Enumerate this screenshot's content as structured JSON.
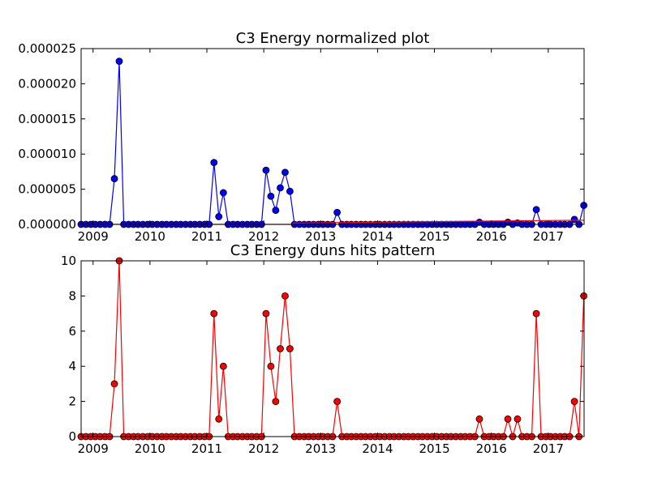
{
  "chart_data": [
    {
      "type": "line",
      "title": "C3 Energy normalized plot",
      "xlabel": "",
      "ylabel": "",
      "xlim": [
        2008.79,
        2017.63
      ],
      "ylim": [
        0,
        2.5e-05
      ],
      "grid": false,
      "x_ticks": [
        "2009",
        "2010",
        "2011",
        "2012",
        "2013",
        "2014",
        "2015",
        "2016",
        "2017"
      ],
      "y_ticks": [
        "0.000000",
        "0.000005",
        "0.000010",
        "0.000015",
        "0.000020",
        "0.000025"
      ],
      "series": [
        {
          "color": "#0000ff",
          "marker": "circle",
          "points": [
            [
              2008.79,
              0
            ],
            [
              2008.875,
              0
            ],
            [
              2008.96,
              0
            ],
            [
              2009.04,
              0
            ],
            [
              2009.125,
              0
            ],
            [
              2009.21,
              0
            ],
            [
              2009.29,
              0
            ],
            [
              2009.375,
              6.5e-06
            ],
            [
              2009.46,
              2.32e-05
            ],
            [
              2009.54,
              0
            ],
            [
              2009.625,
              0
            ],
            [
              2009.71,
              0
            ],
            [
              2009.79,
              0
            ],
            [
              2009.875,
              0
            ],
            [
              2009.96,
              0
            ],
            [
              2010.04,
              0
            ],
            [
              2010.125,
              0
            ],
            [
              2010.21,
              0
            ],
            [
              2010.29,
              0
            ],
            [
              2010.375,
              0
            ],
            [
              2010.46,
              0
            ],
            [
              2010.54,
              0
            ],
            [
              2010.625,
              0
            ],
            [
              2010.71,
              0
            ],
            [
              2010.79,
              0
            ],
            [
              2010.875,
              0
            ],
            [
              2010.96,
              0
            ],
            [
              2011.04,
              0
            ],
            [
              2011.125,
              8.8e-06
            ],
            [
              2011.21,
              1.1e-06
            ],
            [
              2011.29,
              4.5e-06
            ],
            [
              2011.375,
              0
            ],
            [
              2011.46,
              0
            ],
            [
              2011.54,
              0
            ],
            [
              2011.625,
              0
            ],
            [
              2011.71,
              0
            ],
            [
              2011.79,
              0
            ],
            [
              2011.875,
              0
            ],
            [
              2011.96,
              0
            ],
            [
              2012.04,
              7.7e-06
            ],
            [
              2012.125,
              4e-06
            ],
            [
              2012.21,
              2e-06
            ],
            [
              2012.29,
              5.2e-06
            ],
            [
              2012.375,
              7.4e-06
            ],
            [
              2012.46,
              4.7e-06
            ],
            [
              2012.54,
              0
            ],
            [
              2012.625,
              0
            ],
            [
              2012.71,
              0
            ],
            [
              2012.79,
              0
            ],
            [
              2012.875,
              0
            ],
            [
              2012.96,
              0
            ],
            [
              2013.04,
              0
            ],
            [
              2013.125,
              0
            ],
            [
              2013.21,
              0
            ],
            [
              2013.29,
              1.7e-06
            ],
            [
              2013.375,
              0
            ],
            [
              2013.46,
              0
            ],
            [
              2013.54,
              0
            ],
            [
              2013.625,
              0
            ],
            [
              2013.71,
              0
            ],
            [
              2013.79,
              0
            ],
            [
              2013.875,
              0
            ],
            [
              2013.96,
              0
            ],
            [
              2014.04,
              0
            ],
            [
              2014.125,
              0
            ],
            [
              2014.21,
              0
            ],
            [
              2014.29,
              0
            ],
            [
              2014.375,
              0
            ],
            [
              2014.46,
              0
            ],
            [
              2014.54,
              0
            ],
            [
              2014.625,
              0
            ],
            [
              2014.71,
              0
            ],
            [
              2014.79,
              0
            ],
            [
              2014.875,
              0
            ],
            [
              2014.96,
              0
            ],
            [
              2015.04,
              0
            ],
            [
              2015.125,
              0
            ],
            [
              2015.21,
              0
            ],
            [
              2015.29,
              0
            ],
            [
              2015.375,
              0
            ],
            [
              2015.46,
              0
            ],
            [
              2015.54,
              0
            ],
            [
              2015.625,
              0
            ],
            [
              2015.71,
              0
            ],
            [
              2015.79,
              3e-07
            ],
            [
              2015.875,
              0
            ],
            [
              2015.96,
              0
            ],
            [
              2016.04,
              0
            ],
            [
              2016.125,
              0
            ],
            [
              2016.21,
              0
            ],
            [
              2016.29,
              3e-07
            ],
            [
              2016.375,
              0
            ],
            [
              2016.46,
              2e-07
            ],
            [
              2016.54,
              0
            ],
            [
              2016.625,
              0
            ],
            [
              2016.71,
              0
            ],
            [
              2016.79,
              2.1e-06
            ],
            [
              2016.875,
              0
            ],
            [
              2016.96,
              0
            ],
            [
              2017.04,
              0
            ],
            [
              2017.125,
              0
            ],
            [
              2017.21,
              0
            ],
            [
              2017.29,
              0
            ],
            [
              2017.375,
              0
            ],
            [
              2017.46,
              7e-07
            ],
            [
              2017.54,
              0
            ],
            [
              2017.625,
              2.7e-06
            ]
          ]
        },
        {
          "color": "#ff0000",
          "marker": "none",
          "points": [
            [
              2008.79,
              0
            ],
            [
              2012.5,
              0
            ],
            [
              2012.54,
              2e-07
            ],
            [
              2017.63,
              6e-07
            ]
          ]
        }
      ]
    },
    {
      "type": "line",
      "title": "C3 Energy duns hits pattern",
      "xlabel": "",
      "ylabel": "",
      "xlim": [
        2008.79,
        2017.63
      ],
      "ylim": [
        0,
        10
      ],
      "grid": false,
      "x_ticks": [
        "2009",
        "2010",
        "2011",
        "2012",
        "2013",
        "2014",
        "2015",
        "2016",
        "2017"
      ],
      "y_ticks": [
        "0",
        "2",
        "4",
        "6",
        "8",
        "10"
      ],
      "series": [
        {
          "color": "#ff0000",
          "marker": "circle",
          "points": [
            [
              2008.79,
              0
            ],
            [
              2008.875,
              0
            ],
            [
              2008.96,
              0
            ],
            [
              2009.04,
              0
            ],
            [
              2009.125,
              0
            ],
            [
              2009.21,
              0
            ],
            [
              2009.29,
              0
            ],
            [
              2009.375,
              3
            ],
            [
              2009.46,
              10
            ],
            [
              2009.54,
              0
            ],
            [
              2009.625,
              0
            ],
            [
              2009.71,
              0
            ],
            [
              2009.79,
              0
            ],
            [
              2009.875,
              0
            ],
            [
              2009.96,
              0
            ],
            [
              2010.04,
              0
            ],
            [
              2010.125,
              0
            ],
            [
              2010.21,
              0
            ],
            [
              2010.29,
              0
            ],
            [
              2010.375,
              0
            ],
            [
              2010.46,
              0
            ],
            [
              2010.54,
              0
            ],
            [
              2010.625,
              0
            ],
            [
              2010.71,
              0
            ],
            [
              2010.79,
              0
            ],
            [
              2010.875,
              0
            ],
            [
              2010.96,
              0
            ],
            [
              2011.04,
              0
            ],
            [
              2011.125,
              7
            ],
            [
              2011.21,
              1
            ],
            [
              2011.29,
              4
            ],
            [
              2011.375,
              0
            ],
            [
              2011.46,
              0
            ],
            [
              2011.54,
              0
            ],
            [
              2011.625,
              0
            ],
            [
              2011.71,
              0
            ],
            [
              2011.79,
              0
            ],
            [
              2011.875,
              0
            ],
            [
              2011.96,
              0
            ],
            [
              2012.04,
              7
            ],
            [
              2012.125,
              4
            ],
            [
              2012.21,
              2
            ],
            [
              2012.29,
              5
            ],
            [
              2012.375,
              8
            ],
            [
              2012.46,
              5
            ],
            [
              2012.54,
              0
            ],
            [
              2012.625,
              0
            ],
            [
              2012.71,
              0
            ],
            [
              2012.79,
              0
            ],
            [
              2012.875,
              0
            ],
            [
              2012.96,
              0
            ],
            [
              2013.04,
              0
            ],
            [
              2013.125,
              0
            ],
            [
              2013.21,
              0
            ],
            [
              2013.29,
              2
            ],
            [
              2013.375,
              0
            ],
            [
              2013.46,
              0
            ],
            [
              2013.54,
              0
            ],
            [
              2013.625,
              0
            ],
            [
              2013.71,
              0
            ],
            [
              2013.79,
              0
            ],
            [
              2013.875,
              0
            ],
            [
              2013.96,
              0
            ],
            [
              2014.04,
              0
            ],
            [
              2014.125,
              0
            ],
            [
              2014.21,
              0
            ],
            [
              2014.29,
              0
            ],
            [
              2014.375,
              0
            ],
            [
              2014.46,
              0
            ],
            [
              2014.54,
              0
            ],
            [
              2014.625,
              0
            ],
            [
              2014.71,
              0
            ],
            [
              2014.79,
              0
            ],
            [
              2014.875,
              0
            ],
            [
              2014.96,
              0
            ],
            [
              2015.04,
              0
            ],
            [
              2015.125,
              0
            ],
            [
              2015.21,
              0
            ],
            [
              2015.29,
              0
            ],
            [
              2015.375,
              0
            ],
            [
              2015.46,
              0
            ],
            [
              2015.54,
              0
            ],
            [
              2015.625,
              0
            ],
            [
              2015.71,
              0
            ],
            [
              2015.79,
              1
            ],
            [
              2015.875,
              0
            ],
            [
              2015.96,
              0
            ],
            [
              2016.04,
              0
            ],
            [
              2016.125,
              0
            ],
            [
              2016.21,
              0
            ],
            [
              2016.29,
              1
            ],
            [
              2016.375,
              0
            ],
            [
              2016.46,
              1
            ],
            [
              2016.54,
              0
            ],
            [
              2016.625,
              0
            ],
            [
              2016.71,
              0
            ],
            [
              2016.79,
              7
            ],
            [
              2016.875,
              0
            ],
            [
              2016.96,
              0
            ],
            [
              2017.04,
              0
            ],
            [
              2017.125,
              0
            ],
            [
              2017.21,
              0
            ],
            [
              2017.29,
              0
            ],
            [
              2017.375,
              0
            ],
            [
              2017.46,
              2
            ],
            [
              2017.54,
              0
            ],
            [
              2017.625,
              8
            ]
          ]
        }
      ]
    }
  ]
}
